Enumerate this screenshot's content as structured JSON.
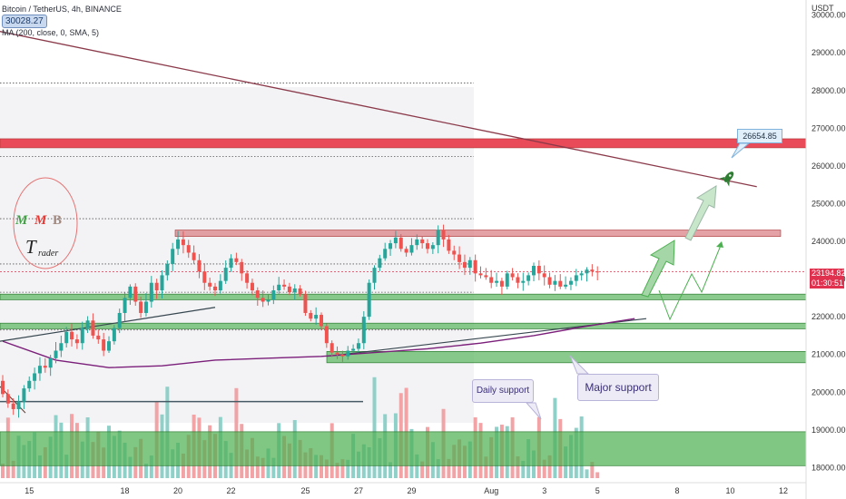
{
  "header": {
    "symbol_line": "Bitcoin / TetherUS, 4h, BINANCE",
    "ma_line": "MA (200, close, 0, SMA, 5)",
    "symbol_box": "30028.27"
  },
  "annotations": {
    "daily_support": "Daily support",
    "major_support": "Major support",
    "target_label": "26654.85",
    "logo_letters": "MMB",
    "logo_word_big": "T",
    "logo_word_small": "rader"
  },
  "price_tag": {
    "value": "23194.82",
    "countdown": "01:30:51",
    "color": "#e0314e"
  },
  "colors": {
    "up": "#26a69a",
    "down": "#ef5350",
    "resistance": "#e8414f",
    "support_zone": "#4caf50",
    "trendline": "#8b3a4a",
    "ma": "#7b1f7a",
    "volume_up": "#8fd0c9",
    "volume_down": "#f2a3a6"
  },
  "chart_data": {
    "type": "candlestick",
    "currency": "USDT",
    "y_ticks": [
      18000,
      19000,
      20000,
      21000,
      22000,
      23000,
      24000,
      25000,
      26000,
      27000,
      28000,
      29000,
      30000
    ],
    "ylim": [
      17600,
      30400
    ],
    "x_ticks": [
      {
        "label": "15",
        "idx": 5
      },
      {
        "label": "18",
        "idx": 23
      },
      {
        "label": "20",
        "idx": 33
      },
      {
        "label": "22",
        "idx": 43
      },
      {
        "label": "25",
        "idx": 57
      },
      {
        "label": "27",
        "idx": 67
      },
      {
        "label": "29",
        "idx": 77
      },
      {
        "label": "Aug",
        "idx": 92
      },
      {
        "label": "3",
        "idx": 102
      },
      {
        "label": "5",
        "idx": 112
      },
      {
        "label": "8",
        "idx": 127
      },
      {
        "label": "10",
        "idx": 137
      },
      {
        "label": "12",
        "idx": 147
      }
    ],
    "close": [
      19950,
      19700,
      19550,
      19750,
      20100,
      20300,
      20500,
      20700,
      20650,
      20900,
      21100,
      21300,
      21600,
      21400,
      21300,
      21700,
      21900,
      21500,
      21400,
      21100,
      21350,
      21700,
      22100,
      22500,
      22800,
      22400,
      22100,
      22400,
      22900,
      22700,
      23100,
      23400,
      23800,
      24050,
      23900,
      23700,
      23500,
      23200,
      22900,
      22800,
      22700,
      22950,
      23300,
      23550,
      23450,
      23150,
      22900,
      22700,
      22500,
      22400,
      22450,
      22700,
      22850,
      22800,
      22650,
      22750,
      22600,
      22100,
      21950,
      22050,
      21750,
      21300,
      21050,
      21000,
      20950,
      21100,
      21150,
      21300,
      22000,
      22900,
      23300,
      23550,
      23800,
      23950,
      24100,
      23800,
      23700,
      23900,
      24050,
      23950,
      23800,
      23900,
      24300,
      24050,
      23750,
      23650,
      23450,
      23300,
      23500,
      23150,
      23100,
      23050,
      22900,
      22950,
      22800,
      23150,
      23050,
      22900,
      22950,
      23100,
      23350,
      23150,
      23050,
      22850,
      22950,
      22800,
      22850,
      22950,
      23100,
      23150,
      23250,
      23200,
      23194.82
    ],
    "series": [
      {
        "name": "MA (200, close, 0, SMA, 5)",
        "values": [
          [
            0,
            21350
          ],
          [
            10,
            20850
          ],
          [
            20,
            20650
          ],
          [
            30,
            20700
          ],
          [
            40,
            20850
          ],
          [
            50,
            20900
          ],
          [
            60,
            20950
          ],
          [
            70,
            21050
          ],
          [
            80,
            21150
          ],
          [
            90,
            21300
          ],
          [
            100,
            21500
          ],
          [
            110,
            21750
          ],
          [
            119,
            21950
          ]
        ]
      }
    ],
    "resistance_zones": [
      [
        26480,
        26720
      ],
      [
        24130,
        24300
      ]
    ],
    "support_zones": [
      [
        22450,
        22600
      ],
      [
        21680,
        21830
      ],
      [
        20780,
        21080
      ],
      [
        18050,
        18950
      ]
    ],
    "dotted_levels": [
      28200,
      26250,
      24600,
      23400,
      22650,
      21650
    ],
    "trendline": [
      [
        -1,
        29580
      ],
      [
        142,
        25450
      ]
    ]
  }
}
